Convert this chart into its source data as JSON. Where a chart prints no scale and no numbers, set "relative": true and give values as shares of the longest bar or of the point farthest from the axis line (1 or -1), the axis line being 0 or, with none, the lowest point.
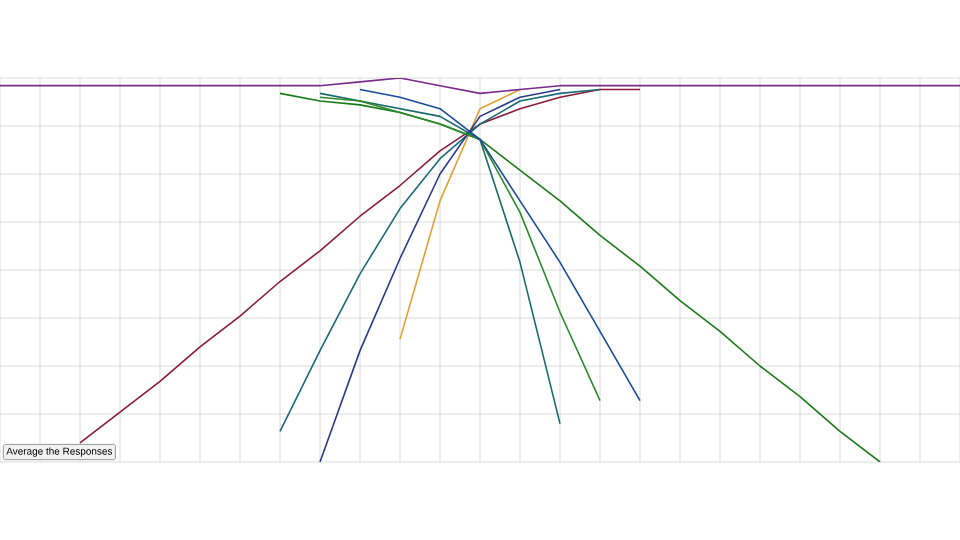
{
  "chart_data": {
    "type": "line",
    "relative": true,
    "grid": true,
    "marker": "none",
    "line_style": "solid",
    "categories": [
      null,
      null,
      null,
      null,
      null,
      null,
      null,
      null,
      null,
      null,
      null,
      null,
      null,
      null,
      null,
      null,
      null,
      null,
      null,
      null,
      null,
      null,
      null,
      null,
      null
    ],
    "series": [
      {
        "color": "#8b1a3a",
        "values": [
          null,
          null,
          0.05,
          0.13,
          0.21,
          0.3,
          0.38,
          0.47,
          0.55,
          0.64,
          0.72,
          0.81,
          0.88,
          0.92,
          0.95,
          0.97,
          0.97,
          null,
          null,
          null,
          null,
          null,
          null,
          null,
          null
        ]
      },
      {
        "color": "#1a7a1a",
        "values": [
          null,
          null,
          null,
          null,
          null,
          null,
          null,
          0.96,
          0.94,
          0.93,
          0.91,
          0.88,
          0.84,
          0.76,
          0.68,
          0.59,
          0.51,
          0.42,
          0.34,
          0.25,
          0.17,
          0.08,
          0,
          null,
          null
        ]
      },
      {
        "color": "#e0a030",
        "values": [
          null,
          null,
          null,
          null,
          null,
          null,
          null,
          null,
          null,
          null,
          0.32,
          0.68,
          0.92,
          0.97,
          null,
          null,
          null,
          null,
          null,
          null,
          null,
          null,
          null,
          null,
          null
        ]
      },
      {
        "color": "#1a6a7a",
        "values": [
          null,
          null,
          null,
          null,
          null,
          null,
          null,
          0.08,
          0.29,
          0.49,
          0.66,
          0.79,
          0.88,
          0.94,
          0.96,
          0.97,
          null,
          null,
          null,
          null,
          null,
          null,
          null,
          null,
          null
        ]
      },
      {
        "color": "#2a3a8a",
        "values": [
          null,
          null,
          null,
          null,
          null,
          null,
          null,
          null,
          0,
          0.29,
          0.53,
          0.75,
          0.9,
          0.95,
          0.97,
          null,
          null,
          null,
          null,
          null,
          null,
          null,
          null,
          null,
          null
        ]
      },
      {
        "color": "#1a6a6a",
        "values": [
          null,
          null,
          null,
          null,
          null,
          null,
          null,
          null,
          0.96,
          0.94,
          0.92,
          0.9,
          0.84,
          0.52,
          0.1,
          null,
          null,
          null,
          null,
          null,
          null,
          null,
          null,
          null,
          null
        ]
      },
      {
        "color": "#2a8a2a",
        "values": [
          null,
          null,
          null,
          null,
          null,
          null,
          null,
          null,
          0.95,
          0.94,
          0.91,
          0.88,
          0.84,
          0.65,
          0.39,
          0.16,
          null,
          null,
          null,
          null,
          null,
          null,
          null,
          null,
          null
        ]
      },
      {
        "color": "#1a4a9a",
        "values": [
          null,
          null,
          null,
          null,
          null,
          null,
          null,
          null,
          null,
          0.97,
          0.95,
          0.92,
          0.84,
          0.68,
          0.52,
          0.34,
          0.16,
          null,
          null,
          null,
          null,
          null,
          null,
          null,
          null
        ]
      },
      {
        "color": "#7a2a8a",
        "values": [
          0.98,
          0.98,
          0.98,
          0.98,
          0.98,
          0.98,
          0.98,
          0.98,
          0.98,
          0.99,
          1.0,
          0.98,
          0.96,
          0.97,
          0.98,
          0.98,
          0.98,
          0.98,
          0.98,
          0.98,
          0.98,
          0.98,
          0.98,
          0.98,
          0.98
        ]
      }
    ],
    "annotations": [
      "Average the Responses"
    ]
  }
}
